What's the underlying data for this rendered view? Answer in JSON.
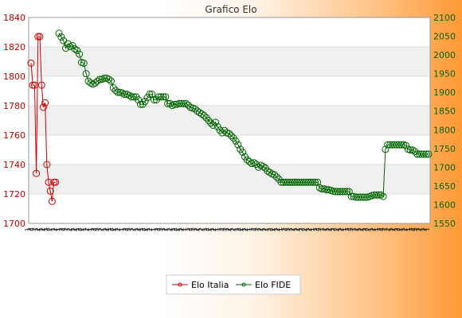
{
  "chart_data": {
    "type": "line",
    "title": "Grafico Elo",
    "left_axis": {
      "ylim": [
        1700,
        1840
      ],
      "ticks": [
        1700,
        1720,
        1740,
        1760,
        1780,
        1800,
        1820,
        1840
      ],
      "color": "#cc0000"
    },
    "right_axis": {
      "ylim": [
        1550,
        2100
      ],
      "ticks": [
        1550,
        1600,
        1650,
        1700,
        1750,
        1800,
        1850,
        1900,
        1950,
        2000,
        2050,
        2100
      ],
      "color": "#006600"
    },
    "x_tick_labels": [
      "1",
      "2",
      "3",
      "1",
      "2",
      "1",
      "2",
      "1",
      "2",
      "2",
      "1",
      "2",
      "1"
    ],
    "grid": true,
    "legend_position": "bottom-center",
    "series": [
      {
        "name": "Elo Italia",
        "axis": "left",
        "color": "#cc0000",
        "values": [
          1809,
          1794,
          1794,
          1734,
          1827,
          1827,
          1794,
          1779,
          1782,
          1740,
          1728,
          1722,
          1715,
          1728,
          1728
        ]
      },
      {
        "name": "Elo FIDE",
        "axis": "right",
        "color": "#006600",
        "values": [
          2058,
          2048,
          2038,
          2018,
          2030,
          2022,
          2025,
          2016,
          2012,
          2002,
          1980,
          1978,
          1950,
          1930,
          1925,
          1922,
          1925,
          1930,
          1935,
          1935,
          1938,
          1938,
          1935,
          1930,
          1912,
          1905,
          1900,
          1900,
          1898,
          1895,
          1895,
          1892,
          1888,
          1888,
          1888,
          1880,
          1868,
          1868,
          1876,
          1886,
          1895,
          1895,
          1880,
          1880,
          1888,
          1888,
          1888,
          1888,
          1870,
          1870,
          1865,
          1868,
          1868,
          1870,
          1870,
          1870,
          1870,
          1866,
          1860,
          1858,
          1856,
          1850,
          1846,
          1842,
          1838,
          1832,
          1825,
          1818,
          1812,
          1820,
          1808,
          1799,
          1792,
          1798,
          1792,
          1790,
          1784,
          1778,
          1770,
          1760,
          1748,
          1740,
          1728,
          1720,
          1715,
          1710,
          1712,
          1708,
          1700,
          1705,
          1702,
          1698,
          1690,
          1686,
          1682,
          1680,
          1674,
          1668,
          1660,
          1660,
          1660,
          1660,
          1660,
          1660,
          1660,
          1660,
          1660,
          1660,
          1660,
          1660,
          1660,
          1660,
          1660,
          1660,
          1660,
          1645,
          1642,
          1642,
          1640,
          1640,
          1638,
          1636,
          1635,
          1635,
          1635,
          1635,
          1635,
          1635,
          1635,
          1622,
          1622,
          1620,
          1620,
          1620,
          1620,
          1620,
          1620,
          1622,
          1624,
          1626,
          1626,
          1626,
          1626,
          1622,
          1748,
          1760,
          1760,
          1760,
          1760,
          1760,
          1760,
          1760,
          1760,
          1758,
          1748,
          1746,
          1746,
          1742,
          1735,
          1735,
          1735,
          1735,
          1735,
          1735
        ]
      }
    ]
  }
}
